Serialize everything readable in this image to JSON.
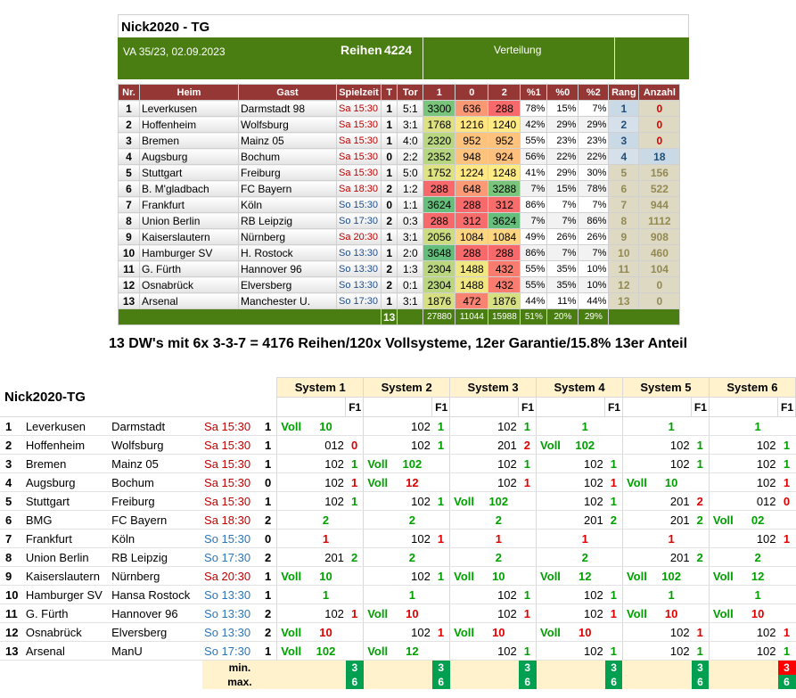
{
  "top": {
    "title": "Nick2020 - TG",
    "va": "VA 35/23, 02.09.2023",
    "reihen_label": "Reihen",
    "reihen_value": "4224",
    "verteilung": "Verteilung",
    "headers": [
      "Nr.",
      "Heim",
      "Gast",
      "Spielzeit",
      "T",
      "Tor",
      "1",
      "0",
      "2",
      "%1",
      "%0",
      "%2",
      "Rang",
      "Anzahl"
    ],
    "rows": [
      {
        "nr": "1",
        "heim": "Leverkusen",
        "gast": "Darmstadt 98",
        "zeit": "Sa 15:30",
        "t": "1",
        "tor": "5:1",
        "v1": "3300",
        "v0": "636",
        "v2": "288",
        "p1": "78%",
        "p0": "15%",
        "p2": "7%",
        "rang": "1",
        "anzahl": "0"
      },
      {
        "nr": "2",
        "heim": "Hoffenheim",
        "gast": "Wolfsburg",
        "zeit": "Sa 15:30",
        "t": "1",
        "tor": "3:1",
        "v1": "1768",
        "v0": "1216",
        "v2": "1240",
        "p1": "42%",
        "p0": "29%",
        "p2": "29%",
        "rang": "2",
        "anzahl": "0"
      },
      {
        "nr": "3",
        "heim": "Bremen",
        "gast": "Mainz 05",
        "zeit": "Sa 15:30",
        "t": "1",
        "tor": "4:0",
        "v1": "2320",
        "v0": "952",
        "v2": "952",
        "p1": "55%",
        "p0": "23%",
        "p2": "23%",
        "rang": "3",
        "anzahl": "0"
      },
      {
        "nr": "4",
        "heim": "Augsburg",
        "gast": "Bochum",
        "zeit": "Sa 15:30",
        "t": "0",
        "tor": "2:2",
        "v1": "2352",
        "v0": "948",
        "v2": "924",
        "p1": "56%",
        "p0": "22%",
        "p2": "22%",
        "rang": "4",
        "anzahl": "18"
      },
      {
        "nr": "5",
        "heim": "Stuttgart",
        "gast": "Freiburg",
        "zeit": "Sa 15:30",
        "t": "1",
        "tor": "5:0",
        "v1": "1752",
        "v0": "1224",
        "v2": "1248",
        "p1": "41%",
        "p0": "29%",
        "p2": "30%",
        "rang": "5",
        "anzahl": "156"
      },
      {
        "nr": "6",
        "heim": "B. M'gladbach",
        "gast": "FC Bayern",
        "zeit": "Sa 18:30",
        "t": "2",
        "tor": "1:2",
        "v1": "288",
        "v0": "648",
        "v2": "3288",
        "p1": "7%",
        "p0": "15%",
        "p2": "78%",
        "rang": "6",
        "anzahl": "522"
      },
      {
        "nr": "7",
        "heim": "Frankfurt",
        "gast": "Köln",
        "zeit": "So 15:30",
        "t": "0",
        "tor": "1:1",
        "v1": "3624",
        "v0": "288",
        "v2": "312",
        "p1": "86%",
        "p0": "7%",
        "p2": "7%",
        "rang": "7",
        "anzahl": "944"
      },
      {
        "nr": "8",
        "heim": "Union Berlin",
        "gast": "RB Leipzig",
        "zeit": "So 17:30",
        "t": "2",
        "tor": "0:3",
        "v1": "288",
        "v0": "312",
        "v2": "3624",
        "p1": "7%",
        "p0": "7%",
        "p2": "86%",
        "rang": "8",
        "anzahl": "1112"
      },
      {
        "nr": "9",
        "heim": "Kaiserslautern",
        "gast": "Nürnberg",
        "zeit": "Sa 20:30",
        "t": "1",
        "tor": "3:1",
        "v1": "2056",
        "v0": "1084",
        "v2": "1084",
        "p1": "49%",
        "p0": "26%",
        "p2": "26%",
        "rang": "9",
        "anzahl": "908"
      },
      {
        "nr": "10",
        "heim": "Hamburger SV",
        "gast": "H. Rostock",
        "zeit": "So 13:30",
        "t": "1",
        "tor": "2:0",
        "v1": "3648",
        "v0": "288",
        "v2": "288",
        "p1": "86%",
        "p0": "7%",
        "p2": "7%",
        "rang": "10",
        "anzahl": "460"
      },
      {
        "nr": "11",
        "heim": "G. Fürth",
        "gast": "Hannover 96",
        "zeit": "So 13:30",
        "t": "2",
        "tor": "1:3",
        "v1": "2304",
        "v0": "1488",
        "v2": "432",
        "p1": "55%",
        "p0": "35%",
        "p2": "10%",
        "rang": "11",
        "anzahl": "104"
      },
      {
        "nr": "12",
        "heim": "Osnabrück",
        "gast": "Elversberg",
        "zeit": "So 13:30",
        "t": "2",
        "tor": "0:1",
        "v1": "2304",
        "v0": "1488",
        "v2": "432",
        "p1": "55%",
        "p0": "35%",
        "p2": "10%",
        "rang": "12",
        "anzahl": "0"
      },
      {
        "nr": "13",
        "heim": "Arsenal",
        "gast": "Manchester U.",
        "zeit": "So 17:30",
        "t": "1",
        "tor": "3:1",
        "v1": "1876",
        "v0": "472",
        "v2": "1876",
        "p1": "44%",
        "p0": "11%",
        "p2": "44%",
        "rang": "13",
        "anzahl": "0"
      }
    ],
    "footer": {
      "t": "13",
      "s1": "27880",
      "s0": "11044",
      "s2": "15988",
      "p1": "51%",
      "p0": "20%",
      "p2": "29%"
    }
  },
  "caption": "13 DW's mit 6x 3-3-7 =  4176 Reihen/120x Vollsysteme, 12er Garantie/15.8% 13er Anteil",
  "bottom": {
    "title": "Nick2020-TG",
    "systems": [
      "System 1",
      "System 2",
      "System 3",
      "System 4",
      "System 5",
      "System 6"
    ],
    "f1": "F1",
    "rows": [
      {
        "nr": "1",
        "heim": "Leverkusen",
        "gast": "Darmstadt",
        "zeit": "Sa 15:30",
        "t": "1",
        "s": [
          [
            "Voll",
            "10",
            ""
          ],
          [
            "",
            "102",
            "1"
          ],
          [
            "",
            "102",
            "1"
          ],
          [
            "",
            "1",
            ""
          ],
          [
            "",
            "1",
            ""
          ],
          [
            "",
            "1",
            ""
          ]
        ]
      },
      {
        "nr": "2",
        "heim": "Hoffenheim",
        "gast": "Wolfsburg",
        "zeit": "Sa 15:30",
        "t": "1",
        "s": [
          [
            "",
            "012",
            "0"
          ],
          [
            "",
            "102",
            "1"
          ],
          [
            "",
            "201",
            "2"
          ],
          [
            "Voll",
            "102",
            ""
          ],
          [
            "",
            "102",
            "1"
          ],
          [
            "",
            "102",
            "1"
          ]
        ]
      },
      {
        "nr": "3",
        "heim": "Bremen",
        "gast": "Mainz 05",
        "zeit": "Sa 15:30",
        "t": "1",
        "s": [
          [
            "",
            "102",
            "1"
          ],
          [
            "Voll",
            "102",
            ""
          ],
          [
            "",
            "102",
            "1"
          ],
          [
            "",
            "102",
            "1"
          ],
          [
            "",
            "102",
            "1"
          ],
          [
            "",
            "102",
            "1"
          ]
        ]
      },
      {
        "nr": "4",
        "heim": "Augsburg",
        "gast": "Bochum",
        "zeit": "Sa 15:30",
        "t": "0",
        "s": [
          [
            "",
            "102",
            "1"
          ],
          [
            "Voll",
            "12",
            ""
          ],
          [
            "",
            "102",
            "1"
          ],
          [
            "",
            "102",
            "1"
          ],
          [
            "Voll",
            "10",
            ""
          ],
          [
            "",
            "102",
            "1"
          ]
        ]
      },
      {
        "nr": "5",
        "heim": "Stuttgart",
        "gast": "Freiburg",
        "zeit": "Sa 15:30",
        "t": "1",
        "s": [
          [
            "",
            "102",
            "1"
          ],
          [
            "",
            "102",
            "1"
          ],
          [
            "Voll",
            "102",
            ""
          ],
          [
            "",
            "102",
            "1"
          ],
          [
            "",
            "201",
            "2"
          ],
          [
            "",
            "012",
            "0"
          ]
        ]
      },
      {
        "nr": "6",
        "heim": "BMG",
        "gast": "FC Bayern",
        "zeit": "Sa 18:30",
        "t": "2",
        "s": [
          [
            "",
            "2",
            ""
          ],
          [
            "",
            "2",
            ""
          ],
          [
            "",
            "2",
            ""
          ],
          [
            "",
            "201",
            "2"
          ],
          [
            "",
            "201",
            "2"
          ],
          [
            "Voll",
            "02",
            ""
          ]
        ]
      },
      {
        "nr": "7",
        "heim": "Frankfurt",
        "gast": "Köln",
        "zeit": "So 15:30",
        "t": "0",
        "s": [
          [
            "",
            "1",
            ""
          ],
          [
            "",
            "102",
            "1"
          ],
          [
            "",
            "1",
            ""
          ],
          [
            "",
            "1",
            ""
          ],
          [
            "",
            "1",
            ""
          ],
          [
            "",
            "102",
            "1"
          ]
        ]
      },
      {
        "nr": "8",
        "heim": "Union Berlin",
        "gast": "RB Leipzig",
        "zeit": "So 17:30",
        "t": "2",
        "s": [
          [
            "",
            "201",
            "2"
          ],
          [
            "",
            "2",
            ""
          ],
          [
            "",
            "2",
            ""
          ],
          [
            "",
            "2",
            ""
          ],
          [
            "",
            "201",
            "2"
          ],
          [
            "",
            "2",
            ""
          ]
        ]
      },
      {
        "nr": "9",
        "heim": "Kaiserslautern",
        "gast": "Nürnberg",
        "zeit": "Sa 20:30",
        "t": "1",
        "s": [
          [
            "Voll",
            "10",
            ""
          ],
          [
            "",
            "102",
            "1"
          ],
          [
            "Voll",
            "10",
            ""
          ],
          [
            "Voll",
            "12",
            ""
          ],
          [
            "Voll",
            "102",
            ""
          ],
          [
            "Voll",
            "12",
            ""
          ]
        ]
      },
      {
        "nr": "10",
        "heim": "Hamburger SV",
        "gast": "Hansa Rostock",
        "zeit": "So 13:30",
        "t": "1",
        "s": [
          [
            "",
            "1",
            ""
          ],
          [
            "",
            "1",
            ""
          ],
          [
            "",
            "102",
            "1"
          ],
          [
            "",
            "102",
            "1"
          ],
          [
            "",
            "1",
            ""
          ],
          [
            "",
            "1",
            ""
          ]
        ]
      },
      {
        "nr": "11",
        "heim": "G. Fürth",
        "gast": "Hannover 96",
        "zeit": "So 13:30",
        "t": "2",
        "s": [
          [
            "",
            "102",
            "1"
          ],
          [
            "Voll",
            "10",
            ""
          ],
          [
            "",
            "102",
            "1"
          ],
          [
            "",
            "102",
            "1"
          ],
          [
            "Voll",
            "10",
            ""
          ],
          [
            "Voll",
            "10",
            ""
          ]
        ]
      },
      {
        "nr": "12",
        "heim": "Osnabrück",
        "gast": "Elversberg",
        "zeit": "So 13:30",
        "t": "2",
        "s": [
          [
            "Voll",
            "10",
            ""
          ],
          [
            "",
            "102",
            "1"
          ],
          [
            "Voll",
            "10",
            ""
          ],
          [
            "Voll",
            "10",
            ""
          ],
          [
            "",
            "102",
            "1"
          ],
          [
            "",
            "102",
            "1"
          ]
        ]
      },
      {
        "nr": "13",
        "heim": "Arsenal",
        "gast": "ManU",
        "zeit": "So 17:30",
        "t": "1",
        "s": [
          [
            "Voll",
            "102",
            ""
          ],
          [
            "Voll",
            "12",
            ""
          ],
          [
            "",
            "102",
            "1"
          ],
          [
            "",
            "102",
            "1"
          ],
          [
            "",
            "102",
            "1"
          ],
          [
            "",
            "102",
            "1"
          ]
        ]
      }
    ],
    "min_label": "min.",
    "max_label": "max.",
    "min": [
      "3",
      "3",
      "3",
      "3",
      "3",
      "3"
    ],
    "max": [
      "6",
      "6",
      "6",
      "6",
      "6",
      "6"
    ]
  },
  "colors": {
    "header_red": "#953735",
    "bar_green": "#4a7e12",
    "cell_green": "#63be7b",
    "cell_yellow": "#ffeb84",
    "cell_red": "#f8696b",
    "hit_green": "#00a000",
    "miss_red": "#e00000",
    "system_header": "#fff2cc"
  }
}
